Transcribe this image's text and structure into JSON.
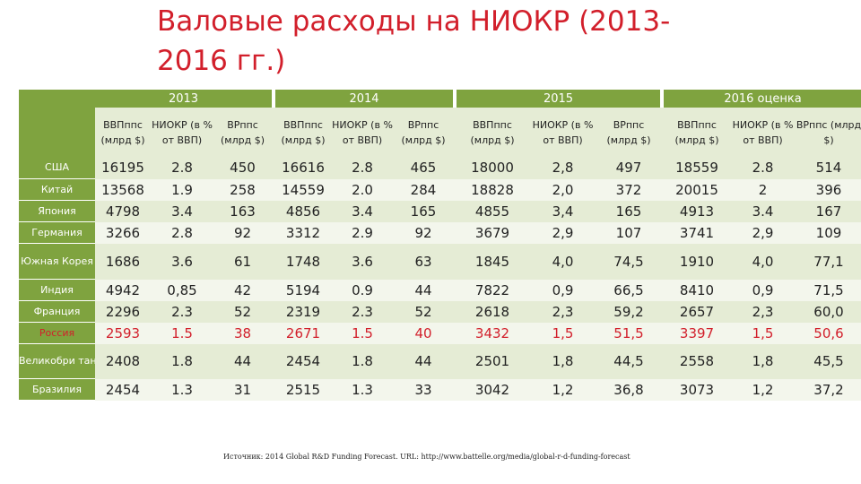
{
  "title": "Валовые расходы на НИОКР (2013-2016 гг.)",
  "years": [
    "2013",
    "2014",
    "2015",
    "2016 оценка"
  ],
  "subheaders": [
    "ВВПппс (млрд $)",
    "НИОКР (в % от ВВП)",
    "ВРппс (млрд $)",
    "ВВПппс (млрд $)",
    "НИОКР (в % от ВВП)",
    "ВРппс (млрд $)",
    "ВВПппс (млрд $)",
    "НИОКР (в % от ВВП)",
    "ВРппс (млрд $)",
    "ВВПппс (млрд $)",
    "НИОКР (в % от ВВП)",
    "ВРппс (млрд $)"
  ],
  "rows": [
    {
      "country": "США",
      "values": [
        "16195",
        "2.8",
        "450",
        "16616",
        "2.8",
        "465",
        "18000",
        "2,8",
        "497",
        "18559",
        "2.8",
        "514"
      ]
    },
    {
      "country": "Китай",
      "values": [
        "13568",
        "1.9",
        "258",
        "14559",
        "2.0",
        "284",
        "18828",
        "2,0",
        "372",
        "20015",
        "2",
        "396"
      ]
    },
    {
      "country": "Япония",
      "values": [
        "4798",
        "3.4",
        "163",
        "4856",
        "3.4",
        "165",
        "4855",
        "3,4",
        "165",
        "4913",
        "3.4",
        "167"
      ]
    },
    {
      "country": "Германия",
      "values": [
        "3266",
        "2.8",
        "92",
        "3312",
        "2.9",
        "92",
        "3679",
        "2,9",
        "107",
        "3741",
        "2,9",
        "109"
      ]
    },
    {
      "country": "Южная Корея",
      "values": [
        "1686",
        "3.6",
        "61",
        "1748",
        "3.6",
        "63",
        "1845",
        "4,0",
        "74,5",
        "1910",
        "4,0",
        "77,1"
      ]
    },
    {
      "country": "Индия",
      "values": [
        "4942",
        "0,85",
        "42",
        "5194",
        "0.9",
        "44",
        "7822",
        "0,9",
        "66,5",
        "8410",
        "0,9",
        "71,5"
      ]
    },
    {
      "country": "Франция",
      "values": [
        "2296",
        "2.3",
        "52",
        "2319",
        "2.3",
        "52",
        "2618",
        "2,3",
        "59,2",
        "2657",
        "2,3",
        "60,0"
      ]
    },
    {
      "country": "Россия",
      "highlight": "#d21f2b",
      "values": [
        "2593",
        "1.5",
        "38",
        "2671",
        "1.5",
        "40",
        "3432",
        "1,5",
        "51,5",
        "3397",
        "1,5",
        "50,6"
      ]
    },
    {
      "country": "Великобри тания",
      "values": [
        "2408",
        "1.8",
        "44",
        "2454",
        "1.8",
        "44",
        "2501",
        "1,8",
        "44,5",
        "2558",
        "1,8",
        "45,5"
      ]
    },
    {
      "country": "Бразилия",
      "values": [
        "2454",
        "1.3",
        "31",
        "2515",
        "1.3",
        "33",
        "3042",
        "1,2",
        "36,8",
        "3073",
        "1,2",
        "37,2"
      ]
    }
  ],
  "source": "Источник: 2014 Global R&D Funding Forecast. URL: http://www.battelle.org/media/global-r-d-funding-forecast",
  "colors": {
    "accent_green": "#7fa33f",
    "band_light": "#e5ecd5",
    "band_lighter": "#f3f6ec",
    "title_red": "#d21f2b"
  }
}
